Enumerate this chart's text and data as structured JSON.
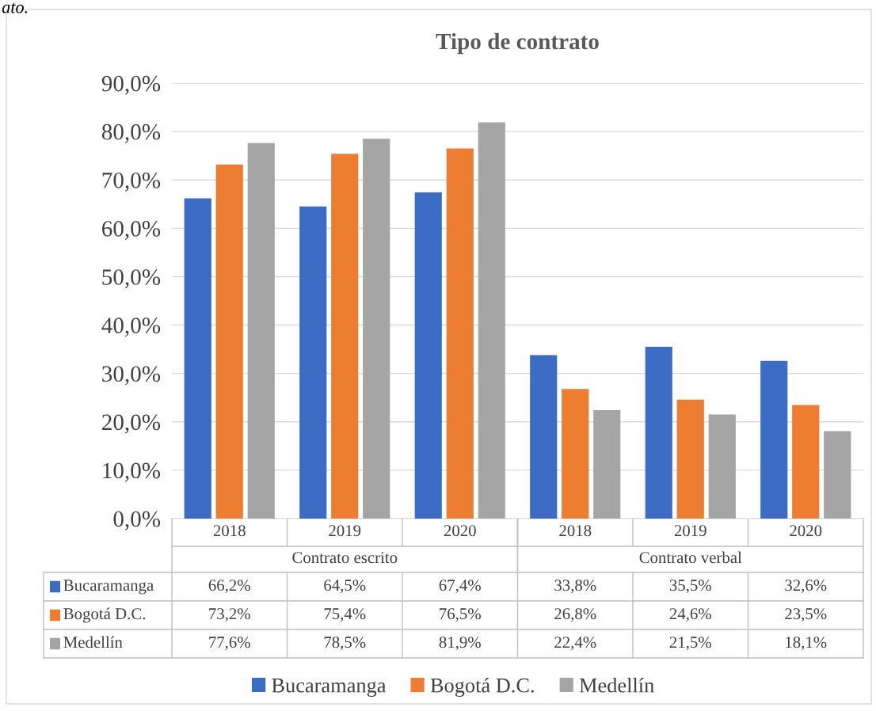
{
  "chart_data": {
    "type": "bar",
    "title": "Tipo de contrato",
    "categories": [
      "2018",
      "2019",
      "2020",
      "2018",
      "2019",
      "2020"
    ],
    "series": [
      {
        "name": "Bucaramanga",
        "color": "#3d6cc4",
        "values": [
          66.2,
          64.5,
          67.4,
          33.8,
          35.5,
          32.6
        ],
        "value_labels": [
          "66,2%",
          "64,5%",
          "67,4%",
          "33,8%",
          "35,5%",
          "32,6%"
        ]
      },
      {
        "name": "Bogotá D.C.",
        "color": "#ed7d31",
        "values": [
          73.2,
          75.4,
          76.5,
          26.8,
          24.6,
          23.5
        ],
        "value_labels": [
          "73,2%",
          "75,4%",
          "76,5%",
          "26,8%",
          "24,6%",
          "23,5%"
        ]
      },
      {
        "name": "Medellín",
        "color": "#a5a5a5",
        "values": [
          77.6,
          78.5,
          81.9,
          22.4,
          21.5,
          18.1
        ],
        "value_labels": [
          "77,6%",
          "78,5%",
          "81,9%",
          "22,4%",
          "21,5%",
          "18,1%"
        ]
      }
    ],
    "ylim": [
      0,
      90
    ],
    "yticks": [
      {
        "value": 0,
        "label": "0,0%"
      },
      {
        "value": 10,
        "label": "10,0%"
      },
      {
        "value": 20,
        "label": "20,0%"
      },
      {
        "value": 30,
        "label": "30,0%"
      },
      {
        "value": 40,
        "label": "40,0%"
      },
      {
        "value": 50,
        "label": "50,0%"
      },
      {
        "value": 60,
        "label": "60,0%"
      },
      {
        "value": 70,
        "label": "70,0%"
      },
      {
        "value": 80,
        "label": "80,0%"
      },
      {
        "value": 90,
        "label": "90,0%"
      }
    ],
    "grid": "y",
    "legend": "bottom",
    "annotations": [
      "ato.",
      "Contrato escrito",
      "Contrato verbal"
    ]
  }
}
